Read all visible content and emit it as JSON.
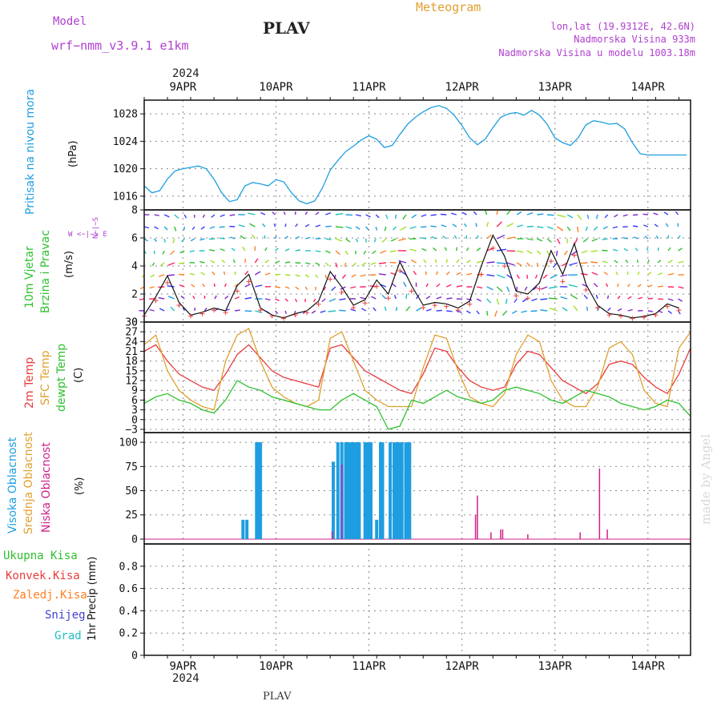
{
  "header": {
    "model_label": "Model",
    "model_name": "wrf−nmm_v3.9.1  e1km",
    "station": "PLAV",
    "meteogram_label": "Meteogram",
    "lonlat": "lon,lat (19.9312E, 42.6N)",
    "altitude": "Nadmorska Visina 933m",
    "model_altitude": "Nadmorska Visina u modelu 1003.18m",
    "footer_station": "PLAV",
    "credit": "made by Angel"
  },
  "colors": {
    "pressure": "#1e9ee0",
    "temp": "#e83c3c",
    "sfc_temp": "#e0a030",
    "dewpoint": "#2ec02e",
    "high_cloud": "#1e9ee0",
    "mid_cloud": "#6a5acd",
    "low_cloud": "#d0208a",
    "precip_total": "#2ec02e",
    "precip_conv": "#e83c3c",
    "precip_frozen": "#ff7f20",
    "snow": "#4040d0",
    "hail": "#20c0c0",
    "wind_arrows": "#7f28d0",
    "label_purple": "#b040d0",
    "meteogram_title": "#e0a030"
  },
  "chart_data": [
    {
      "id": "pressure",
      "type": "line",
      "ylabel_main": "Pritisak na nivou mora",
      "ylabel_unit": "(hPa)",
      "ylim": [
        1014,
        1030
      ],
      "yticks": [
        "1016",
        "1020",
        "1024",
        "1028"
      ],
      "xlim": [
        0,
        141
      ],
      "grid": true,
      "series": [
        {
          "x": [
            0,
            2,
            4,
            6,
            8,
            10,
            12,
            14,
            16,
            18,
            20,
            22,
            24,
            26,
            28,
            30,
            32,
            34,
            36,
            38,
            40,
            42,
            44,
            46,
            48,
            50,
            52,
            54,
            56,
            58,
            60,
            62,
            64,
            66,
            68,
            70,
            72,
            74,
            76,
            78,
            80,
            82,
            84,
            86,
            88,
            90,
            92,
            94,
            96,
            98,
            100,
            102,
            104,
            106,
            108,
            110,
            112,
            114,
            116,
            118,
            120,
            122,
            124,
            126,
            128,
            130,
            132,
            134,
            136,
            138,
            140
          ],
          "values": [
            1017.5,
            1016.5,
            1016.8,
            1018.5,
            1019.7,
            1020,
            1020.2,
            1020.4,
            1020,
            1018.5,
            1016.5,
            1015.2,
            1015.5,
            1017.5,
            1018,
            1017.8,
            1017.5,
            1018.4,
            1018.1,
            1016.5,
            1015.3,
            1014.9,
            1015.3,
            1017.2,
            1019.8,
            1021.2,
            1022.5,
            1023.3,
            1024.2,
            1024.8,
            1024.3,
            1023.1,
            1023.4,
            1025,
            1026.5,
            1027.5,
            1028.3,
            1028.9,
            1029.2,
            1028.8,
            1027.8,
            1026.3,
            1024.5,
            1023.5,
            1024.3,
            1026,
            1027.5,
            1028,
            1028.2,
            1027.8,
            1028.5,
            1027.8,
            1026.5,
            1024.5,
            1023.8,
            1023.4,
            1024.5,
            1026.4,
            1027,
            1026.8,
            1026.5,
            1026.6,
            1025.8,
            1023.8,
            1022.2,
            1022,
            1022,
            1022,
            1022,
            1022,
            1022
          ]
        }
      ]
    },
    {
      "id": "wind",
      "type": "line",
      "ylabel_main": "10m Vjetar",
      "ylabel_sub": "Brzina i Pravac",
      "ylabel_unit": "(m/s)",
      "compass": "W <−|−> E",
      "compass_v": "N−|−S",
      "ylim": [
        0,
        8
      ],
      "yticks": [
        "0",
        "2",
        "4",
        "6",
        "8"
      ],
      "grid": true,
      "series": [
        {
          "name": "speed",
          "x": [
            0,
            3,
            6,
            9,
            12,
            15,
            18,
            21,
            24,
            27,
            30,
            33,
            36,
            39,
            42,
            45,
            48,
            51,
            54,
            57,
            60,
            63,
            66,
            69,
            72,
            75,
            78,
            81,
            84,
            87,
            90,
            93,
            96,
            99,
            102,
            105,
            108,
            111,
            114,
            117,
            120,
            123,
            126,
            129,
            132,
            135,
            138
          ],
          "values": [
            0.5,
            1.8,
            3.3,
            1.4,
            0.5,
            0.7,
            1.0,
            0.8,
            2.6,
            3.4,
            1.0,
            0.5,
            0.3,
            0.6,
            0.8,
            1.5,
            3.6,
            2.5,
            1.2,
            1.6,
            3.0,
            2.0,
            4.3,
            2.6,
            1.2,
            1.4,
            1.3,
            1.0,
            1.5,
            4.0,
            6.2,
            4.7,
            2.2,
            2.0,
            2.8,
            5.1,
            3.4,
            5.6,
            2.7,
            1.2,
            0.6,
            0.5,
            0.3,
            0.4,
            0.6,
            1.3,
            1.0
          ]
        }
      ]
    },
    {
      "id": "temperature",
      "type": "line",
      "ylabel_lines": [
        "2m Temp",
        "SFC Temp",
        "dewpt Temp"
      ],
      "ylabel_unit": "(C)",
      "ylim": [
        -4,
        30
      ],
      "yticks": [
        "−3",
        "0",
        "3",
        "6",
        "9",
        "12",
        "15",
        "18",
        "21",
        "24",
        "27",
        "30"
      ],
      "grid": true,
      "series": [
        {
          "name": "2m Temp",
          "x": [
            0,
            3,
            6,
            9,
            12,
            15,
            18,
            21,
            24,
            27,
            30,
            33,
            36,
            39,
            42,
            45,
            48,
            51,
            54,
            57,
            60,
            63,
            66,
            69,
            72,
            75,
            78,
            81,
            84,
            87,
            90,
            93,
            96,
            99,
            102,
            105,
            108,
            111,
            114,
            117,
            120,
            123,
            126,
            129,
            132,
            135,
            138,
            141
          ],
          "values": [
            21,
            23,
            18,
            14,
            12,
            10,
            9,
            14,
            20,
            23,
            19,
            15,
            13,
            12,
            11,
            10,
            22,
            23,
            19,
            15,
            13,
            11,
            9,
            8,
            14,
            22,
            21,
            16,
            12,
            10,
            9,
            10,
            17,
            21,
            20,
            16,
            12,
            10,
            8,
            11,
            17,
            18,
            17,
            13,
            10,
            8,
            14,
            22
          ]
        },
        {
          "name": "SFC Temp",
          "x": [
            0,
            3,
            6,
            9,
            12,
            15,
            18,
            21,
            24,
            27,
            30,
            33,
            36,
            39,
            42,
            45,
            48,
            51,
            54,
            57,
            60,
            63,
            66,
            69,
            72,
            75,
            78,
            81,
            84,
            87,
            90,
            93,
            96,
            99,
            102,
            105,
            108,
            111,
            114,
            117,
            120,
            123,
            126,
            129,
            132,
            135,
            138,
            141
          ],
          "values": [
            23,
            26,
            15,
            9,
            6,
            4,
            3,
            18,
            26,
            28,
            18,
            10,
            7,
            5,
            4,
            6,
            25,
            27,
            18,
            9,
            6,
            4,
            4,
            4,
            16,
            26,
            25,
            15,
            7,
            5,
            4,
            8,
            20,
            26,
            24,
            12,
            6,
            4,
            4,
            10,
            22,
            24,
            20,
            9,
            5,
            4,
            22,
            27
          ]
        },
        {
          "name": "dewpt Temp",
          "x": [
            0,
            3,
            6,
            9,
            12,
            15,
            18,
            21,
            24,
            27,
            30,
            33,
            36,
            39,
            42,
            45,
            48,
            51,
            54,
            57,
            60,
            63,
            66,
            69,
            72,
            75,
            78,
            81,
            84,
            87,
            90,
            93,
            96,
            99,
            102,
            105,
            108,
            111,
            114,
            117,
            120,
            123,
            126,
            129,
            132,
            135,
            138,
            141
          ],
          "values": [
            5,
            7,
            8,
            6,
            5,
            3,
            2,
            6,
            12,
            10,
            9,
            7,
            6,
            5,
            4,
            3,
            3,
            6,
            8,
            6,
            4,
            -3,
            -2,
            6,
            5,
            7,
            9,
            7,
            6,
            5,
            6,
            9,
            10,
            9,
            8,
            6,
            5,
            7,
            9,
            8,
            7,
            5,
            4,
            3,
            4,
            6,
            5,
            1
          ]
        }
      ]
    },
    {
      "id": "cloud",
      "type": "bar",
      "ylabel_lines": [
        "Visoka Oblacnost",
        "Srednja Oblacnost",
        "Niska Oblacnost"
      ],
      "ylabel_unit": "(%)",
      "ylim": [
        -5,
        110
      ],
      "yticks": [
        "0",
        "25",
        "50",
        "75",
        "100"
      ],
      "grid": true,
      "series": [
        {
          "name": "Visoka Oblacnost",
          "x": [
            25.5,
            26.5,
            29.0,
            29.5,
            30.0,
            48.8,
            50.0,
            51.0,
            52.0,
            52.5,
            53.0,
            53.5,
            54.0,
            54.5,
            55.0,
            55.5,
            57.0,
            57.5,
            58.0,
            58.5,
            60.0,
            61.0,
            61.5,
            63.5,
            64.5,
            65.0,
            65.5,
            66.0,
            66.5,
            67.5,
            68.0,
            68.5
          ],
          "values": [
            20,
            20,
            100,
            100,
            100,
            80,
            100,
            100,
            100,
            100,
            100,
            100,
            100,
            100,
            100,
            100,
            100,
            100,
            100,
            100,
            20,
            100,
            100,
            100,
            100,
            100,
            100,
            100,
            100,
            100,
            100,
            100
          ]
        },
        {
          "name": "Srednja Oblacnost",
          "x": [
            51.0
          ],
          "values": [
            77
          ]
        },
        {
          "name": "Niska Oblacnost",
          "x": [
            48.5,
            85.5,
            86.0,
            89.5,
            92.0,
            92.5,
            99.0,
            112.5,
            117.5,
            119.5
          ],
          "values": [
            8,
            25,
            45,
            7,
            10,
            10,
            5,
            7,
            73,
            10
          ]
        }
      ]
    },
    {
      "id": "precip",
      "type": "bar",
      "ylabel_unit": "1hr Precip (mm)",
      "legend": [
        "Ukupna Kisa",
        "Konvek.Kisa",
        "Zaledj.Kisa",
        "Snijeg",
        "Grad"
      ],
      "ylim": [
        0,
        1.0
      ],
      "yticks": [
        "0",
        "0.2",
        "0.4",
        "0.6",
        "0.8"
      ],
      "grid": true,
      "series": []
    }
  ],
  "time_axis": {
    "year": "2024",
    "days": [
      "9APR",
      "10APR",
      "11APR",
      "12APR",
      "13APR",
      "14APR"
    ],
    "day_hours": [
      10,
      34,
      58,
      82,
      106,
      130
    ]
  }
}
